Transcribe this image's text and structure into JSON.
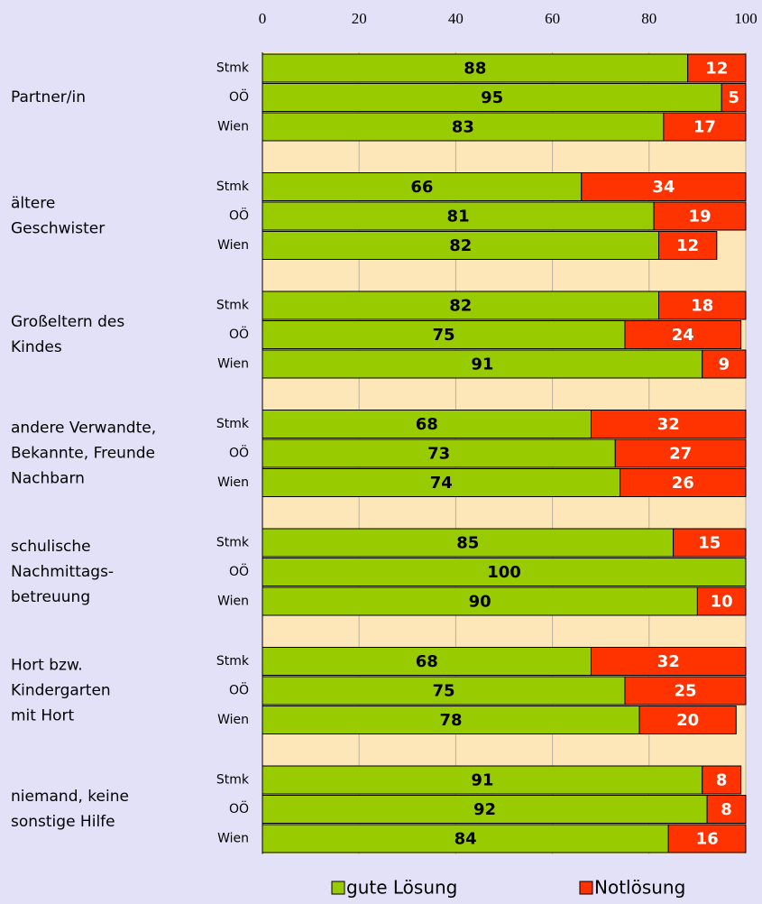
{
  "chart_data": {
    "type": "stacked-bar-horizontal",
    "groups": [
      [
        "Partner/in"
      ],
      [
        "ältere",
        "Geschwister"
      ],
      [
        "Großeltern des",
        "Kindes"
      ],
      [
        "andere Verwandte,",
        "Bekannte, Freunde",
        "Nachbarn"
      ],
      [
        "schulische",
        "Nachmittags-",
        "betreuung"
      ],
      [
        "Hort bzw.",
        "Kindergarten",
        "mit Hort"
      ],
      [
        "niemand, keine",
        "sonstige Hilfe"
      ]
    ],
    "categories": [
      "Stmk",
      "OÖ",
      "Wien",
      "Stmk",
      "OÖ",
      "Wien",
      "Stmk",
      "OÖ",
      "Wien",
      "Stmk",
      "OÖ",
      "Wien",
      "Stmk",
      "OÖ",
      "Wien",
      "Stmk",
      "OÖ",
      "Wien",
      "Stmk",
      "OÖ",
      "Wien"
    ],
    "series": [
      {
        "name": "gute Lösung",
        "color": "#99cc00",
        "values": [
          88,
          95,
          83,
          66,
          81,
          82,
          82,
          75,
          91,
          68,
          73,
          74,
          85,
          100,
          90,
          68,
          75,
          78,
          91,
          92,
          84
        ]
      },
      {
        "name": "Notlösung",
        "color": "#ff3300",
        "values": [
          12,
          5,
          17,
          34,
          19,
          12,
          18,
          24,
          9,
          32,
          27,
          26,
          15,
          null,
          10,
          32,
          25,
          20,
          8,
          8,
          16
        ]
      }
    ],
    "xlim": [
      0,
      100
    ],
    "xticks": [
      0,
      20,
      40,
      60,
      80,
      100
    ],
    "grid": true
  }
}
